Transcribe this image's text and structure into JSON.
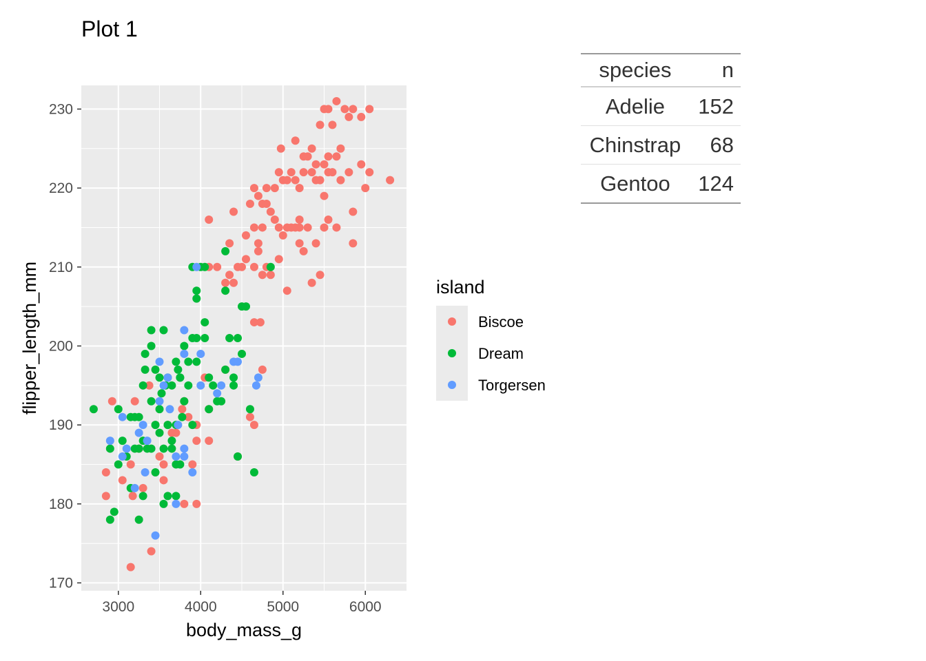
{
  "title": "Plot 1",
  "colors": {
    "panel_bg": "#EBEBEB",
    "grid": "#FFFFFF",
    "Biscoe": "#F8766D",
    "Dream": "#00BA38",
    "Torgersen": "#619CFF"
  },
  "chart_data": {
    "type": "scatter",
    "xlabel": "body_mass_g",
    "ylabel": "flipper_length_mm",
    "xlim": [
      2550,
      6500
    ],
    "ylim": [
      169,
      233
    ],
    "x_ticks": [
      3000,
      4000,
      5000,
      6000
    ],
    "y_ticks": [
      170,
      180,
      190,
      200,
      210,
      220,
      230
    ],
    "grid": true,
    "legend": {
      "title": "island",
      "position": "right",
      "entries": [
        "Biscoe",
        "Dream",
        "Torgersen"
      ]
    },
    "series": [
      {
        "name": "Biscoe",
        "color": "#F8766D",
        "points": [
          [
            2850,
            181
          ],
          [
            2850,
            184
          ],
          [
            2925,
            193
          ],
          [
            3050,
            183
          ],
          [
            3150,
            185
          ],
          [
            3150,
            172
          ],
          [
            3175,
            181
          ],
          [
            3200,
            193
          ],
          [
            3250,
            187
          ],
          [
            3300,
            182
          ],
          [
            3375,
            195
          ],
          [
            3400,
            174
          ],
          [
            3450,
            190
          ],
          [
            3500,
            186
          ],
          [
            3550,
            185
          ],
          [
            3550,
            183
          ],
          [
            3600,
            190
          ],
          [
            3650,
            189
          ],
          [
            3700,
            189
          ],
          [
            3775,
            192
          ],
          [
            3800,
            193
          ],
          [
            3800,
            180
          ],
          [
            3850,
            191
          ],
          [
            3900,
            185
          ],
          [
            3950,
            190
          ],
          [
            3950,
            180
          ],
          [
            3950,
            188
          ],
          [
            4050,
            196
          ],
          [
            4100,
            192
          ],
          [
            4100,
            188
          ],
          [
            4300,
            197
          ],
          [
            4450,
            186
          ],
          [
            4600,
            191
          ],
          [
            4650,
            190
          ],
          [
            4650,
            203
          ],
          [
            4725,
            203
          ],
          [
            4750,
            197
          ],
          [
            4100,
            210
          ],
          [
            4200,
            210
          ],
          [
            4300,
            208
          ],
          [
            4350,
            209
          ],
          [
            4400,
            208
          ],
          [
            4450,
            210
          ],
          [
            4500,
            210
          ],
          [
            4550,
            211
          ],
          [
            4650,
            210
          ],
          [
            4700,
            212
          ],
          [
            4750,
            209
          ],
          [
            4800,
            210
          ],
          [
            4850,
            209
          ],
          [
            4950,
            211
          ],
          [
            5050,
            207
          ],
          [
            5200,
            216
          ],
          [
            5350,
            208
          ],
          [
            5450,
            209
          ],
          [
            4100,
            216
          ],
          [
            4350,
            213
          ],
          [
            4400,
            217
          ],
          [
            4550,
            214
          ],
          [
            4600,
            218
          ],
          [
            4650,
            215
          ],
          [
            4700,
            219
          ],
          [
            4700,
            213
          ],
          [
            4750,
            215
          ],
          [
            4800,
            218
          ],
          [
            4850,
            217
          ],
          [
            4900,
            216
          ],
          [
            4950,
            215
          ],
          [
            5000,
            214
          ],
          [
            5050,
            215
          ],
          [
            5100,
            215
          ],
          [
            5150,
            215
          ],
          [
            5200,
            215
          ],
          [
            5250,
            212
          ],
          [
            5300,
            215
          ],
          [
            5400,
            213
          ],
          [
            5500,
            215
          ],
          [
            5550,
            216
          ],
          [
            5650,
            215
          ],
          [
            4650,
            220
          ],
          [
            4800,
            220
          ],
          [
            4950,
            222
          ],
          [
            5000,
            221
          ],
          [
            5050,
            221
          ],
          [
            5100,
            222
          ],
          [
            5150,
            221
          ],
          [
            5200,
            220
          ],
          [
            5250,
            222
          ],
          [
            5350,
            222
          ],
          [
            5400,
            221
          ],
          [
            5450,
            221
          ],
          [
            5500,
            223
          ],
          [
            5550,
            222
          ],
          [
            5600,
            222
          ],
          [
            5700,
            221
          ],
          [
            5800,
            222
          ],
          [
            5850,
            217
          ],
          [
            5950,
            223
          ],
          [
            6000,
            220
          ],
          [
            6050,
            222
          ],
          [
            6300,
            221
          ],
          [
            4975,
            225
          ],
          [
            5150,
            226
          ],
          [
            5250,
            224
          ],
          [
            5350,
            225
          ],
          [
            5450,
            228
          ],
          [
            5500,
            230
          ],
          [
            5550,
            224
          ],
          [
            5600,
            228
          ],
          [
            5650,
            224
          ],
          [
            5700,
            225
          ],
          [
            5750,
            230
          ],
          [
            5800,
            229
          ],
          [
            5850,
            230
          ],
          [
            5950,
            229
          ],
          [
            5850,
            213
          ],
          [
            6050,
            230
          ],
          [
            5650,
            231
          ],
          [
            5550,
            230
          ],
          [
            5300,
            224
          ],
          [
            5400,
            223
          ],
          [
            5500,
            219
          ],
          [
            5200,
            213
          ],
          [
            4900,
            220
          ],
          [
            4750,
            218
          ]
        ]
      },
      {
        "name": "Dream",
        "color": "#00BA38",
        "points": [
          [
            2700,
            192
          ],
          [
            2900,
            178
          ],
          [
            2900,
            187
          ],
          [
            2950,
            179
          ],
          [
            3000,
            185
          ],
          [
            3000,
            192
          ],
          [
            3050,
            188
          ],
          [
            3100,
            186
          ],
          [
            3150,
            191
          ],
          [
            3150,
            182
          ],
          [
            3200,
            187
          ],
          [
            3200,
            191
          ],
          [
            3250,
            178
          ],
          [
            3250,
            187
          ],
          [
            3300,
            181
          ],
          [
            3300,
            188
          ],
          [
            3300,
            195
          ],
          [
            3325,
            199
          ],
          [
            3325,
            197
          ],
          [
            3350,
            187
          ],
          [
            3400,
            200
          ],
          [
            3400,
            202
          ],
          [
            3400,
            193
          ],
          [
            3400,
            187
          ],
          [
            3450,
            190
          ],
          [
            3450,
            184
          ],
          [
            3450,
            197
          ],
          [
            3500,
            189
          ],
          [
            3500,
            196
          ],
          [
            3500,
            192
          ],
          [
            3525,
            194
          ],
          [
            3550,
            187
          ],
          [
            3550,
            180
          ],
          [
            3550,
            202
          ],
          [
            3575,
            195
          ],
          [
            3600,
            190
          ],
          [
            3600,
            181
          ],
          [
            3600,
            196
          ],
          [
            3650,
            188
          ],
          [
            3650,
            187
          ],
          [
            3700,
            185
          ],
          [
            3700,
            190
          ],
          [
            3700,
            198
          ],
          [
            3700,
            181
          ],
          [
            3725,
            197
          ],
          [
            3750,
            185
          ],
          [
            3750,
            196
          ],
          [
            3775,
            191
          ],
          [
            3800,
            200
          ],
          [
            3800,
            193
          ],
          [
            3850,
            198
          ],
          [
            3850,
            195
          ],
          [
            3900,
            201
          ],
          [
            3900,
            190
          ],
          [
            3950,
            198
          ],
          [
            3950,
            201
          ],
          [
            3950,
            207
          ],
          [
            3900,
            210
          ],
          [
            4050,
            203
          ],
          [
            4050,
            201
          ],
          [
            4100,
            196
          ],
          [
            4100,
            192
          ],
          [
            4150,
            195
          ],
          [
            4200,
            193
          ],
          [
            4250,
            193
          ],
          [
            4300,
            197
          ],
          [
            4350,
            201
          ],
          [
            4400,
            196
          ],
          [
            4400,
            195
          ],
          [
            4450,
            201
          ],
          [
            4450,
            186
          ],
          [
            4500,
            205
          ],
          [
            4500,
            199
          ],
          [
            4550,
            205
          ],
          [
            4600,
            192
          ],
          [
            4650,
            184
          ],
          [
            4050,
            210
          ],
          [
            4300,
            212
          ],
          [
            4300,
            207
          ],
          [
            4850,
            210
          ],
          [
            3950,
            206
          ],
          [
            4000,
            210
          ],
          [
            3650,
            195
          ],
          [
            3750,
            196
          ],
          [
            3250,
            191
          ]
        ]
      },
      {
        "name": "Torgersen",
        "color": "#619CFF",
        "points": [
          [
            2900,
            188
          ],
          [
            3050,
            186
          ],
          [
            3050,
            191
          ],
          [
            3100,
            187
          ],
          [
            3200,
            182
          ],
          [
            3250,
            189
          ],
          [
            3300,
            190
          ],
          [
            3325,
            184
          ],
          [
            3350,
            188
          ],
          [
            3450,
            176
          ],
          [
            3500,
            193
          ],
          [
            3500,
            198
          ],
          [
            3550,
            195
          ],
          [
            3600,
            196
          ],
          [
            3625,
            192
          ],
          [
            3700,
            186
          ],
          [
            3700,
            180
          ],
          [
            3725,
            190
          ],
          [
            3800,
            187
          ],
          [
            3800,
            199
          ],
          [
            3800,
            186
          ],
          [
            3900,
            184
          ],
          [
            4000,
            195
          ],
          [
            4000,
            199
          ],
          [
            4200,
            194
          ],
          [
            4250,
            195
          ],
          [
            4400,
            198
          ],
          [
            4450,
            198
          ],
          [
            4700,
            196
          ],
          [
            4675,
            195
          ],
          [
            3950,
            210
          ],
          [
            3800,
            202
          ]
        ]
      }
    ]
  },
  "table": {
    "headers": [
      "species",
      "n"
    ],
    "rows": [
      [
        "Adelie",
        "152"
      ],
      [
        "Chinstrap",
        "68"
      ],
      [
        "Gentoo",
        "124"
      ]
    ]
  }
}
